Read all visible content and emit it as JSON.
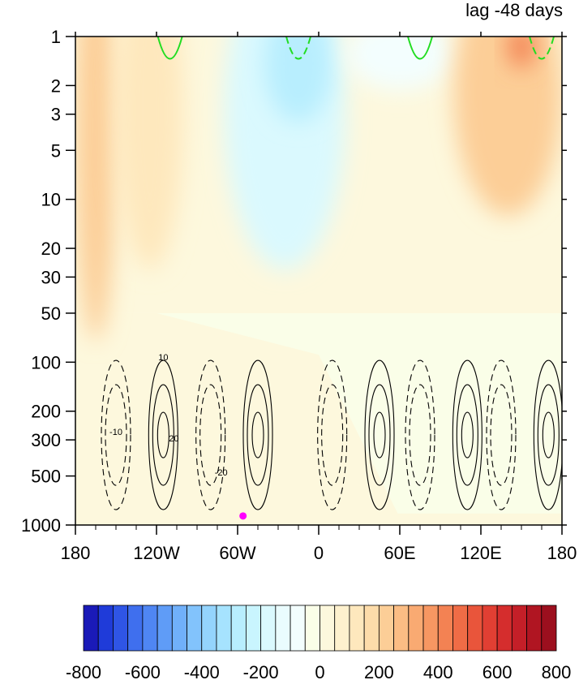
{
  "title": "lag -48 days",
  "chart_data": {
    "type": "heatmap",
    "title": "lag -48 days",
    "xlabel": "",
    "ylabel": "",
    "x_tick_labels": [
      "180",
      "120W",
      "60W",
      "0",
      "60E",
      "120E",
      "180"
    ],
    "x_ticks_lon": [
      -180,
      -120,
      -60,
      0,
      60,
      120,
      180
    ],
    "xlim": [
      -180,
      180
    ],
    "y_tick_labels": [
      "1",
      "2",
      "3",
      "5",
      "10",
      "20",
      "30",
      "50",
      "100",
      "200",
      "300",
      "500",
      "1000"
    ],
    "y_ticks_hpa": [
      1,
      2,
      3,
      5,
      10,
      20,
      30,
      50,
      100,
      200,
      300,
      500,
      1000
    ],
    "ylim": [
      1,
      1000
    ],
    "y_scale": "log, inverted (pressure, hPa)",
    "colorbar": {
      "tick_labels": [
        "-800",
        "-600",
        "-400",
        "-200",
        "0",
        "200",
        "400",
        "600",
        "800"
      ],
      "levels": [
        -800,
        -750,
        -700,
        -650,
        -600,
        -550,
        -500,
        -450,
        -400,
        -350,
        -300,
        -250,
        -200,
        -150,
        -100,
        -50,
        0,
        50,
        100,
        150,
        200,
        250,
        300,
        350,
        400,
        450,
        500,
        550,
        600,
        650,
        700,
        750,
        800
      ],
      "colors": [
        "#1a1ab8",
        "#1f3bd9",
        "#2f55e6",
        "#3f6fee",
        "#4f86f3",
        "#5f9cf7",
        "#70b0fa",
        "#82c3fc",
        "#94d4fd",
        "#a6e3fe",
        "#b8eefe",
        "#c9f5fe",
        "#daf9fe",
        "#eafcfe",
        "#f3fefe",
        "#fafee8",
        "#fdf8dd",
        "#fef1ce",
        "#fee8bd",
        "#fddcaa",
        "#fcce97",
        "#fbbd84",
        "#f9aa72",
        "#f79762",
        "#f38253",
        "#ef6c46",
        "#e9553b",
        "#e13f33",
        "#d52d2d",
        "#c41f28",
        "#b01522",
        "#9c0f1e"
      ]
    },
    "shaded_regions": [
      {
        "lon_min": -180,
        "lon_max": -150,
        "p_min": 1,
        "p_max": 50,
        "value": 200
      },
      {
        "lon_min": -150,
        "lon_max": -100,
        "p_min": 1,
        "p_max": 20,
        "value": 100
      },
      {
        "lon_min": -70,
        "lon_max": 20,
        "p_min": 1,
        "p_max": 20,
        "value": -200
      },
      {
        "lon_min": -40,
        "lon_max": 10,
        "p_min": 1,
        "p_max": 3,
        "value": -300
      },
      {
        "lon_min": 20,
        "lon_max": 100,
        "p_min": 1,
        "p_max": 2,
        "value": -100
      },
      {
        "lon_min": 100,
        "lon_max": 180,
        "p_min": 1,
        "p_max": 10,
        "value": 200
      },
      {
        "lon_min": 140,
        "lon_max": 160,
        "p_min": 1,
        "p_max": 1.5,
        "value": 400
      }
    ],
    "contours": {
      "solid_label": "10",
      "dashed_label": "-10",
      "inner_labels": [
        "20",
        "-20"
      ],
      "solid_centers_lon": [
        -115,
        -45,
        45,
        110,
        170
      ],
      "dashed_centers_lon": [
        -150,
        -80,
        10,
        75,
        135
      ],
      "center_pressure": 280
    },
    "green_contours_top_lon": [
      -110,
      -15,
      75,
      165
    ],
    "marker": {
      "lon": -56,
      "p": 880,
      "color": "#ff00ff"
    }
  }
}
